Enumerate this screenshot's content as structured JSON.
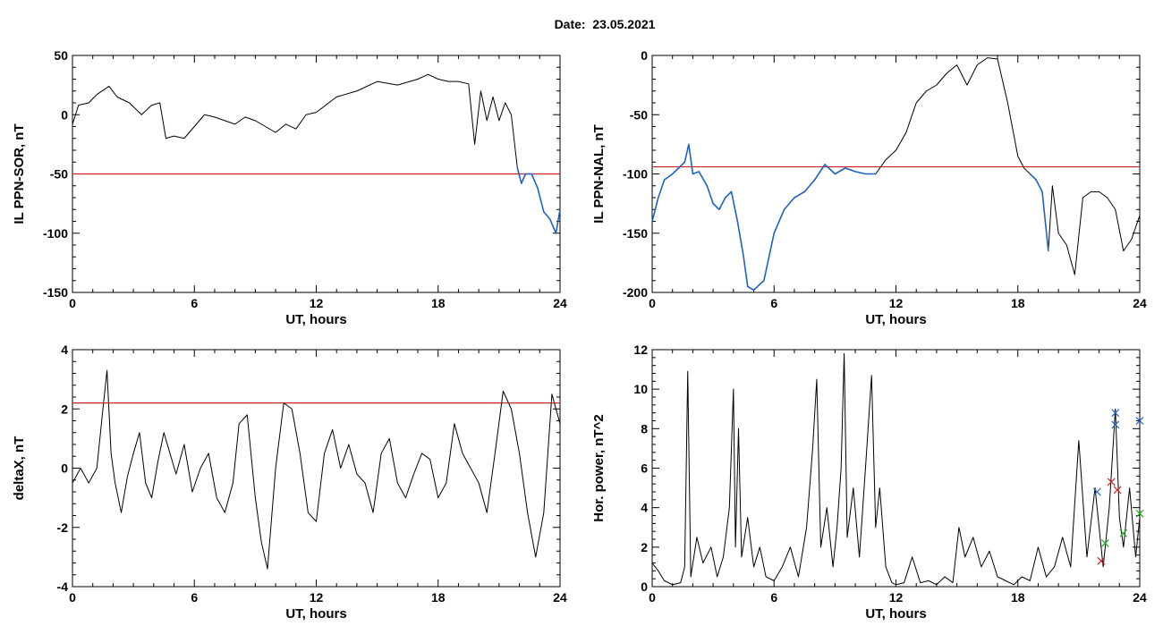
{
  "header": {
    "date_label": "Date:",
    "date_value": "23.05.2021"
  },
  "colors": {
    "threshold": "#cc2222",
    "highlight": "#1f63c8",
    "series": "#000000",
    "marker_blue": "#1f63c8",
    "marker_red": "#cc2222",
    "marker_green": "#22aa22"
  },
  "chart_data": [
    {
      "id": "sor",
      "type": "line",
      "xlabel": "UT, hours",
      "ylabel": "IL PPN-SOR, nT",
      "xlim": [
        0,
        24
      ],
      "ylim": [
        -150,
        50
      ],
      "xticks": [
        0,
        6,
        12,
        18,
        24
      ],
      "yticks": [
        50,
        0,
        -50,
        -100,
        -150
      ],
      "threshold": -50,
      "series": [
        {
          "x": [
            0,
            0.3,
            0.8,
            1.2,
            1.8,
            2.2,
            2.8,
            3.4,
            3.9,
            4.3,
            4.6,
            5.0,
            5.5,
            6.0,
            6.5,
            7.0,
            7.5,
            8.0,
            8.5,
            9.0,
            9.5,
            10.0,
            10.5,
            11.0,
            11.5,
            12.0,
            13.0,
            14.0,
            15.0,
            16.0,
            17.0,
            17.5,
            18.0,
            18.5,
            19.0,
            19.5,
            19.8,
            20.1,
            20.4,
            20.7,
            21.0,
            21.3,
            21.6,
            21.9,
            22.1,
            22.3,
            22.6,
            22.9,
            23.2,
            23.5,
            23.8,
            24.0
          ],
          "y": [
            -8,
            8,
            10,
            17,
            24,
            15,
            10,
            0,
            8,
            10,
            -20,
            -18,
            -20,
            -10,
            0,
            -2,
            -5,
            -8,
            -2,
            -5,
            -10,
            -15,
            -8,
            -12,
            0,
            2,
            15,
            20,
            28,
            25,
            30,
            34,
            30,
            28,
            28,
            26,
            -25,
            20,
            -5,
            15,
            -5,
            10,
            0,
            -45,
            -58,
            -50,
            -50,
            -62,
            -82,
            -88,
            -100,
            -80
          ]
        }
      ],
      "highlight_from_x": 21.8
    },
    {
      "id": "nal",
      "type": "line",
      "xlabel": "UT, hours",
      "ylabel": "IL PPN-NAL, nT",
      "xlim": [
        0,
        24
      ],
      "ylim": [
        -200,
        0
      ],
      "xticks": [
        0,
        6,
        12,
        18,
        24
      ],
      "yticks": [
        0,
        -50,
        -100,
        -150,
        -200
      ],
      "threshold": -94,
      "series": [
        {
          "x": [
            0,
            0.3,
            0.6,
            1.0,
            1.3,
            1.6,
            1.8,
            2.0,
            2.3,
            2.7,
            3.0,
            3.3,
            3.6,
            3.9,
            4.2,
            4.5,
            4.7,
            5.0,
            5.5,
            6.0,
            6.5,
            7.0,
            7.5,
            8.0,
            8.5,
            9.0,
            9.5,
            10.0,
            10.5,
            11.0,
            11.5,
            12.0,
            12.5,
            13.0,
            13.5,
            14.0,
            14.5,
            15.0,
            15.5,
            16.0,
            16.5,
            17.0,
            17.5,
            18.0,
            18.3,
            18.6,
            18.9,
            19.2,
            19.5,
            19.7,
            20.0,
            20.4,
            20.8,
            21.2,
            21.6,
            22.0,
            22.4,
            22.8,
            23.2,
            23.6,
            24.0
          ],
          "y": [
            -140,
            -120,
            -105,
            -100,
            -95,
            -90,
            -75,
            -100,
            -98,
            -110,
            -125,
            -130,
            -120,
            -115,
            -140,
            -170,
            -195,
            -198,
            -190,
            -150,
            -130,
            -120,
            -115,
            -105,
            -92,
            -100,
            -95,
            -98,
            -100,
            -100,
            -88,
            -80,
            -65,
            -40,
            -30,
            -25,
            -15,
            -8,
            -25,
            -8,
            -2,
            -3,
            -40,
            -85,
            -95,
            -100,
            -105,
            -115,
            -165,
            -110,
            -150,
            -160,
            -185,
            -120,
            -115,
            -115,
            -120,
            -130,
            -165,
            -155,
            -135
          ]
        }
      ],
      "highlight_ranges": [
        [
          0,
          11.0
        ],
        [
          18.5,
          19.5
        ]
      ]
    },
    {
      "id": "deltax",
      "type": "line",
      "xlabel": "UT, hours",
      "ylabel": "deltaX, nT",
      "xlim": [
        0,
        24
      ],
      "ylim": [
        -4,
        4
      ],
      "xticks": [
        0,
        6,
        12,
        18,
        24
      ],
      "yticks": [
        4,
        2,
        0,
        -2,
        -4
      ],
      "threshold": 2.2,
      "series": [
        {
          "x": [
            0,
            0.4,
            0.8,
            1.2,
            1.5,
            1.7,
            1.9,
            2.1,
            2.4,
            2.7,
            3.0,
            3.3,
            3.6,
            3.9,
            4.2,
            4.5,
            4.8,
            5.1,
            5.5,
            5.9,
            6.3,
            6.7,
            7.1,
            7.5,
            7.9,
            8.2,
            8.6,
            9.0,
            9.3,
            9.6,
            10.0,
            10.4,
            10.8,
            11.2,
            11.6,
            12.0,
            12.4,
            12.8,
            13.2,
            13.6,
            14.0,
            14.4,
            14.8,
            15.2,
            15.6,
            16.0,
            16.4,
            16.8,
            17.2,
            17.6,
            18.0,
            18.4,
            18.8,
            19.2,
            19.6,
            20.0,
            20.4,
            20.8,
            21.2,
            21.6,
            22.0,
            22.4,
            22.8,
            23.2,
            23.6,
            24.0
          ],
          "y": [
            -0.5,
            0,
            -0.5,
            0,
            2.0,
            3.3,
            0.5,
            -0.5,
            -1.5,
            -0.3,
            0.5,
            1.2,
            -0.5,
            -1.0,
            0.2,
            1.2,
            0.5,
            -0.2,
            0.8,
            -0.8,
            0,
            0.5,
            -1.0,
            -1.5,
            -0.5,
            1.5,
            1.8,
            -1.0,
            -2.5,
            -3.4,
            0,
            2.2,
            2.0,
            0.5,
            -1.5,
            -1.8,
            0.5,
            1.3,
            0,
            0.8,
            -0.2,
            -0.5,
            -1.5,
            0.5,
            1.0,
            -0.5,
            -1.0,
            -0.2,
            0.5,
            0.3,
            -1.0,
            -0.5,
            1.5,
            0.5,
            0,
            -0.5,
            -1.5,
            0.5,
            2.6,
            2.0,
            0.5,
            -1.5,
            -3.0,
            -1.5,
            2.5,
            1.5
          ]
        }
      ]
    },
    {
      "id": "power",
      "type": "line",
      "xlabel": "UT, hours",
      "ylabel": "Hor. power, nT^2",
      "xlim": [
        0,
        24
      ],
      "ylim": [
        0,
        12
      ],
      "xticks": [
        0,
        6,
        12,
        18,
        24
      ],
      "yticks": [
        12,
        10,
        8,
        6,
        4,
        2,
        0
      ],
      "series": [
        {
          "x": [
            0,
            0.3,
            0.6,
            1.0,
            1.4,
            1.6,
            1.75,
            1.9,
            2.2,
            2.5,
            2.9,
            3.2,
            3.5,
            3.8,
            4.0,
            4.1,
            4.25,
            4.4,
            4.7,
            5.0,
            5.3,
            5.6,
            6.0,
            6.4,
            6.8,
            7.2,
            7.6,
            7.9,
            8.1,
            8.3,
            8.6,
            8.9,
            9.1,
            9.3,
            9.45,
            9.6,
            9.9,
            10.2,
            10.5,
            10.8,
            11.0,
            11.2,
            11.5,
            11.8,
            12.0,
            12.4,
            12.8,
            13.2,
            13.6,
            14.0,
            14.4,
            14.8,
            15.1,
            15.4,
            15.8,
            16.2,
            16.6,
            17.0,
            17.4,
            17.8,
            18.2,
            18.6,
            19.0,
            19.4,
            19.8,
            20.2,
            20.6,
            21.0,
            21.4,
            21.8,
            22.2,
            22.5,
            22.8,
            23.0,
            23.2,
            23.5,
            23.8,
            24.0
          ],
          "y": [
            1.2,
            0.8,
            0.3,
            0.1,
            0.2,
            1.0,
            10.9,
            0.5,
            2.5,
            1.2,
            2.0,
            0.5,
            1.5,
            4.0,
            10.0,
            2.0,
            8.0,
            1.5,
            3.5,
            1.0,
            2.0,
            0.5,
            0.3,
            1.0,
            2.0,
            0.5,
            3.0,
            7.0,
            10.5,
            2.0,
            4.0,
            1.0,
            3.0,
            6.0,
            11.8,
            2.5,
            5.0,
            1.5,
            6.0,
            10.7,
            3.0,
            5.0,
            1.0,
            0.2,
            0.1,
            0.2,
            1.5,
            0.2,
            0.3,
            0.1,
            0.5,
            0.2,
            3.0,
            1.5,
            2.5,
            1.0,
            1.8,
            0.5,
            0.3,
            0.1,
            0.5,
            0.3,
            2.0,
            0.5,
            1.0,
            2.5,
            1.0,
            7.4,
            1.5,
            5.0,
            1.0,
            4.0,
            9.0,
            3.5,
            2.0,
            5.0,
            1.5,
            3.5
          ]
        }
      ],
      "markers": [
        {
          "color": "blue",
          "x": 22.8,
          "y": 8.8
        },
        {
          "color": "blue",
          "x": 22.8,
          "y": 8.2
        },
        {
          "color": "blue",
          "x": 24.0,
          "y": 8.4
        },
        {
          "color": "blue",
          "x": 21.9,
          "y": 4.8
        },
        {
          "color": "red",
          "x": 22.6,
          "y": 5.3
        },
        {
          "color": "red",
          "x": 22.9,
          "y": 4.9
        },
        {
          "color": "red",
          "x": 22.1,
          "y": 1.3
        },
        {
          "color": "green",
          "x": 22.3,
          "y": 2.2
        },
        {
          "color": "green",
          "x": 23.2,
          "y": 2.7
        },
        {
          "color": "green",
          "x": 24.0,
          "y": 3.7
        }
      ]
    }
  ]
}
